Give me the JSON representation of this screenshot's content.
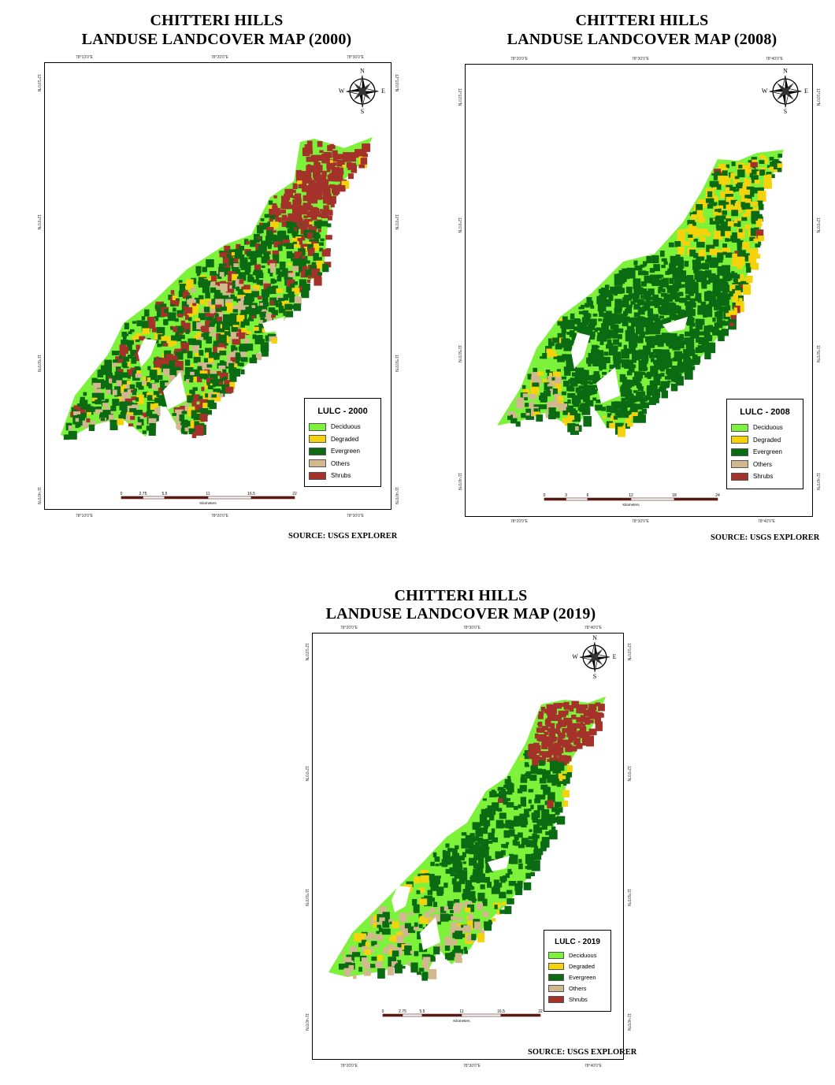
{
  "maps": [
    {
      "id": "2000",
      "title_line1": "CHITTERI HILLS",
      "title_line2": "LANDUSE LANDCOVER MAP (2000)",
      "legend_title": "LULC - 2000",
      "source": "SOURCE: USGS EXPLORER",
      "scale_labels": [
        "0",
        "2.75",
        "5.5",
        "11",
        "16.5",
        "22"
      ],
      "scale_unit": "Kilometers",
      "top_ticks": [
        "78°10'0\"E",
        "78°20'0\"E",
        "78°30'0\"E"
      ],
      "bottom_ticks": [
        "78°10'0\"E",
        "78°20'0\"E",
        "78°30'0\"E"
      ],
      "left_ticks": [
        "12°10'0\"N",
        "12°0'0\"N",
        "11°50'0\"N",
        "11°40'0\"N"
      ],
      "right_ticks": [
        "12°10'0\"N",
        "12°0'0\"N",
        "11°50'0\"N",
        "11°40'0\"N"
      ]
    },
    {
      "id": "2008",
      "title_line1": "CHITTERI HILLS",
      "title_line2": "LANDUSE LANDCOVER MAP (2008)",
      "legend_title": "LULC - 2008",
      "source": "SOURCE: USGS EXPLORER",
      "scale_labels": [
        "0",
        "3",
        "6",
        "12",
        "18",
        "24"
      ],
      "scale_unit": "Kilometers",
      "top_ticks": [
        "78°20'0\"E",
        "78°30'0\"E",
        "78°40'0\"E"
      ],
      "bottom_ticks": [
        "78°20'0\"E",
        "78°30'0\"E",
        "78°40'0\"E"
      ],
      "left_ticks": [
        "12°10'0\"N",
        "12°0'0\"N",
        "11°50'0\"N",
        "11°40'0\"N"
      ],
      "right_ticks": [
        "12°10'0\"N",
        "12°0'0\"N",
        "11°50'0\"N",
        "11°40'0\"N"
      ]
    },
    {
      "id": "2019",
      "title_line1": "CHITTERI HILLS",
      "title_line2": "LANDUSE LANDCOVER MAP (2019)",
      "legend_title": "LULC - 2019",
      "source": "SOURCE: USGS EXPLORER",
      "scale_labels": [
        "0",
        "2.75",
        "5.5",
        "11",
        "16.5",
        "22"
      ],
      "scale_unit": "Kilometers",
      "top_ticks": [
        "78°20'0\"E",
        "78°30'0\"E",
        "78°40'0\"E"
      ],
      "bottom_ticks": [
        "78°20'0\"E",
        "78°30'0\"E",
        "78°40'0\"E"
      ],
      "left_ticks": [
        "12°10'0\"N",
        "12°0'0\"N",
        "11°50'0\"N",
        "11°40'0\"N"
      ],
      "right_ticks": [
        "12°10'0\"N",
        "12°0'0\"N",
        "11°50'0\"N",
        "11°40'0\"N"
      ]
    }
  ],
  "legend_items": [
    {
      "label": "Deciduous",
      "color": "#7cf23a"
    },
    {
      "label": "Degraded",
      "color": "#f5d30c"
    },
    {
      "label": "Evergreen",
      "color": "#0b6b12"
    },
    {
      "label": "Others",
      "color": "#d2b88f"
    },
    {
      "label": "Shrubs",
      "color": "#a5322a"
    }
  ],
  "compass": {
    "n": "N",
    "s": "S",
    "e": "E",
    "w": "W"
  }
}
